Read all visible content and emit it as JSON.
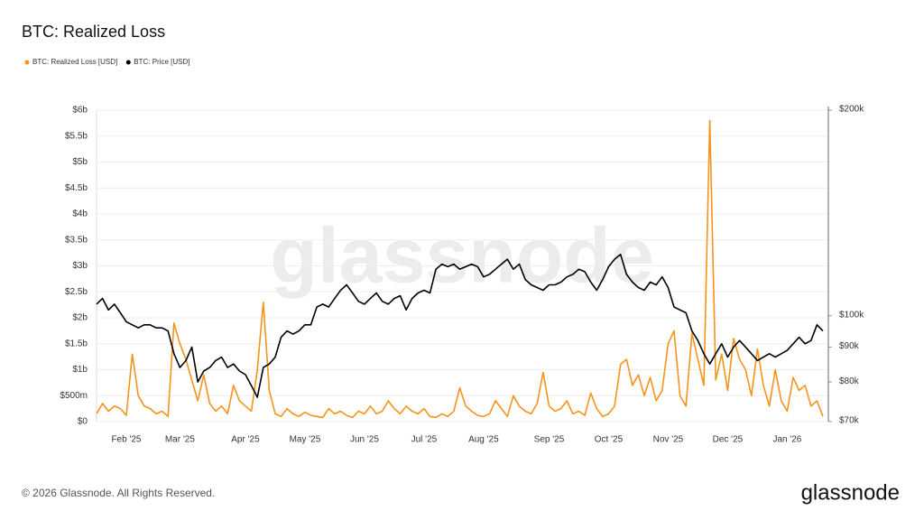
{
  "chart_data": {
    "type": "line",
    "title": "BTC: Realized Loss",
    "footer": "© 2026 Glassnode. All Rights Reserved.",
    "brand": "glassnode",
    "watermark": "glassnode",
    "categories": [
      null,
      null,
      null,
      null,
      null,
      "Feb '25",
      null,
      null,
      null,
      null,
      null,
      null,
      null,
      null,
      "Mar '25",
      null,
      null,
      null,
      null,
      null,
      null,
      null,
      null,
      null,
      null,
      "Apr '25",
      null,
      null,
      null,
      null,
      null,
      null,
      null,
      null,
      null,
      "May '25",
      null,
      null,
      null,
      null,
      null,
      null,
      null,
      null,
      null,
      "Jun '25",
      null,
      null,
      null,
      null,
      null,
      null,
      null,
      null,
      null,
      "Jul '25",
      null,
      null,
      null,
      null,
      null,
      null,
      null,
      null,
      null,
      "Aug '25",
      null,
      null,
      null,
      null,
      null,
      null,
      null,
      null,
      null,
      null,
      "Sep '25",
      null,
      null,
      null,
      null,
      null,
      null,
      null,
      null,
      null,
      "Oct '25",
      null,
      null,
      null,
      null,
      null,
      null,
      null,
      null,
      null,
      "Nov '25",
      null,
      null,
      null,
      null,
      null,
      null,
      null,
      null,
      null,
      "Dec '25",
      null,
      null,
      null,
      null,
      null,
      null,
      null,
      null,
      null,
      "Jan '26",
      null,
      null,
      null,
      null,
      null,
      null
    ],
    "series": [
      {
        "name": "BTC: Realized Loss [USD]",
        "color": "#f7931a",
        "axis": "y",
        "values": [
          150000000.0,
          350000000.0,
          200000000.0,
          300000000.0,
          250000000.0,
          120000000.0,
          1300000000.0,
          500000000.0,
          300000000.0,
          250000000.0,
          150000000.0,
          200000000.0,
          100000000.0,
          1900000000.0,
          1500000000.0,
          1200000000.0,
          800000000.0,
          400000000.0,
          900000000.0,
          350000000.0,
          200000000.0,
          300000000.0,
          150000000.0,
          700000000.0,
          400000000.0,
          300000000.0,
          200000000.0,
          1000000000.0,
          2300000000.0,
          600000000.0,
          150000000.0,
          100000000.0,
          250000000.0,
          150000000.0,
          100000000.0,
          180000000.0,
          120000000.0,
          100000000.0,
          80000000.0,
          250000000.0,
          150000000.0,
          200000000.0,
          120000000.0,
          80000000.0,
          200000000.0,
          150000000.0,
          300000000.0,
          150000000.0,
          200000000.0,
          400000000.0,
          250000000.0,
          150000000.0,
          300000000.0,
          200000000.0,
          150000000.0,
          250000000.0,
          100000000.0,
          80000000.0,
          150000000.0,
          100000000.0,
          200000000.0,
          650000000.0,
          300000000.0,
          200000000.0,
          120000000.0,
          100000000.0,
          150000000.0,
          400000000.0,
          250000000.0,
          100000000.0,
          500000000.0,
          300000000.0,
          200000000.0,
          150000000.0,
          350000000.0,
          950000000.0,
          300000000.0,
          200000000.0,
          250000000.0,
          400000000.0,
          150000000.0,
          200000000.0,
          120000000.0,
          550000000.0,
          250000000.0,
          100000000.0,
          150000000.0,
          300000000.0,
          1100000000.0,
          1200000000.0,
          700000000.0,
          900000000.0,
          500000000.0,
          850000000.0,
          400000000.0,
          600000000.0,
          1500000000.0,
          1750000000.0,
          500000000.0,
          300000000.0,
          1700000000.0,
          1200000000.0,
          700000000.0,
          5800000000.0,
          800000000.0,
          1300000000.0,
          600000000.0,
          1600000000.0,
          1200000000.0,
          1000000000.0,
          500000000.0,
          1400000000.0,
          700000000.0,
          300000000.0,
          1000000000.0,
          400000000.0,
          200000000.0,
          850000000.0,
          600000000.0,
          700000000.0,
          300000000.0,
          400000000.0,
          100000000.0
        ]
      },
      {
        "name": "BTC: Price [USD]",
        "color": "#000000",
        "axis": "y2",
        "values": [
          104000,
          106000,
          102000,
          104000,
          101000,
          98000,
          97000,
          96000,
          97000,
          97000,
          96000,
          96000,
          95000,
          88000,
          84000,
          86000,
          90000,
          80000,
          83000,
          84000,
          86000,
          87000,
          84000,
          85000,
          83000,
          82000,
          79000,
          76000,
          84000,
          85000,
          87000,
          93000,
          95000,
          94000,
          95000,
          97000,
          97000,
          103000,
          104000,
          103000,
          106000,
          109000,
          111000,
          108000,
          105000,
          104000,
          106000,
          108000,
          105000,
          104000,
          106000,
          107000,
          102000,
          106000,
          108000,
          109000,
          108000,
          117000,
          119000,
          118000,
          119000,
          117000,
          118000,
          119000,
          118000,
          114000,
          115000,
          117000,
          119000,
          121000,
          117000,
          119000,
          113000,
          111000,
          110000,
          109000,
          111000,
          111000,
          112000,
          114000,
          115000,
          117000,
          116000,
          112000,
          109000,
          113000,
          118000,
          121000,
          123000,
          115000,
          112000,
          110000,
          109000,
          112000,
          111000,
          114000,
          110000,
          103000,
          102000,
          101000,
          95000,
          92000,
          88000,
          85000,
          88000,
          91000,
          87000,
          90000,
          92000,
          90000,
          88000,
          86000,
          87000,
          88000,
          87000,
          88000,
          89000,
          91000,
          93000,
          91000,
          92000,
          97000,
          95000
        ]
      }
    ],
    "ylim": [
      0,
      6000000000
    ],
    "yticks": [
      {
        "value": 0,
        "label": "$0"
      },
      {
        "value": 500000000,
        "label": "$500m"
      },
      {
        "value": 1000000000,
        "label": "$1b"
      },
      {
        "value": 1500000000,
        "label": "$1.5b"
      },
      {
        "value": 2000000000,
        "label": "$2b"
      },
      {
        "value": 2500000000,
        "label": "$2.5b"
      },
      {
        "value": 3000000000,
        "label": "$3b"
      },
      {
        "value": 3500000000,
        "label": "$3.5b"
      },
      {
        "value": 4000000000,
        "label": "$4b"
      },
      {
        "value": 4500000000,
        "label": "$4.5b"
      },
      {
        "value": 5000000000,
        "label": "$5b"
      },
      {
        "value": 5500000000,
        "label": "$5.5b"
      },
      {
        "value": 6000000000,
        "label": "$6b"
      }
    ],
    "y2lim": [
      70000,
      200000
    ],
    "y2ticks": [
      {
        "value": 70000,
        "label": "$70k"
      },
      {
        "value": 80000,
        "label": "$80k"
      },
      {
        "value": 90000,
        "label": "$90k"
      },
      {
        "value": 100000,
        "label": "$100k"
      },
      {
        "value": 200000,
        "label": "$200k"
      }
    ],
    "y2log": true,
    "grid": true
  }
}
